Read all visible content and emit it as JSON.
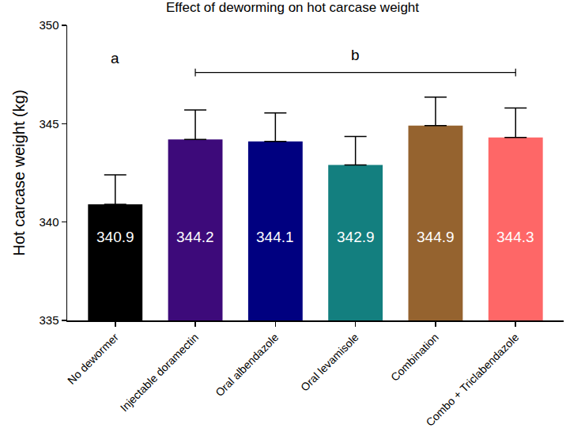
{
  "chart_data": {
    "type": "bar",
    "title": "Effect of deworming on hot carcase weight",
    "y_label": "Hot carcase weight (kg)",
    "categories": [
      "No dewormer",
      "Injectable doramectin",
      "Oral albendazole",
      "Oral levamisole",
      "Combination",
      "Combo + Triclabendazole"
    ],
    "values": [
      340.9,
      344.2,
      344.1,
      342.9,
      344.9,
      344.3
    ],
    "errors": [
      1.5,
      1.5,
      1.45,
      1.45,
      1.45,
      1.5
    ],
    "colors": [
      "#000000",
      "#3d0a7a",
      "#000080",
      "#137f7f",
      "#95632f",
      "#fe6767"
    ],
    "ylim": [
      335,
      350
    ],
    "yticks": [
      335,
      340,
      345,
      350
    ],
    "grid": false,
    "data_labels": true,
    "annotations": [
      {
        "text": "a",
        "categories": [
          "No dewormer"
        ]
      },
      {
        "text": "b",
        "categories": [
          "Injectable doramectin",
          "Oral albendazole",
          "Oral levamisole",
          "Combination",
          "Combo + Triclabendazole"
        ]
      }
    ]
  }
}
